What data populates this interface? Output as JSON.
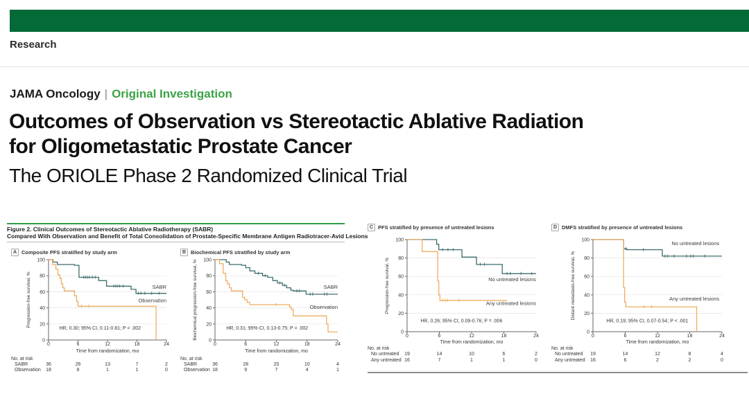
{
  "colors": {
    "brand_green": "#046a38",
    "accent_green": "#3ca245",
    "rule_green": "#2f9e44",
    "teal": "#3e6c6c",
    "orange": "#efad5f"
  },
  "header": {
    "section": "Research",
    "journal": "JAMA Oncology",
    "divider": "|",
    "article_type": "Original Investigation",
    "title_line1": "Outcomes of Observation vs Stereotactic Ablative Radiation",
    "title_line2": "for Oligometastatic Prostate Cancer",
    "subtitle": "The ORIOLE Phase 2 Randomized Clinical Trial"
  },
  "figure": {
    "caption_line1": "Figure 2. Clinical Outcomes of Stereotactic Ablative Radiotherapy (SABR)",
    "caption_line2": "Compared With Observation and Benefit of Total Consolidation of Prostate-Specific Membrane Antigen Radiotracer-Avid Lesions"
  },
  "chart_data": [
    {
      "panel": "A",
      "title": "Composite PFS stratified by study arm",
      "type": "line",
      "ylabel": "Progression-free survival, %",
      "xlabel": "Time from randomization, mo",
      "xlim": [
        0,
        24
      ],
      "ylim": [
        0,
        100
      ],
      "xticks": [
        0,
        6,
        12,
        18,
        24
      ],
      "yticks": [
        0,
        20,
        40,
        60,
        80,
        100
      ],
      "grid": true,
      "annotation": "HR, 0.30; 95% CI, 0.11-0.81; P = .002",
      "annotation_xy": [
        2.2,
        13
      ],
      "series": [
        {
          "name": "SABR",
          "color": "teal",
          "label_xy": [
            24,
            64
          ],
          "steps": [
            [
              0,
              100
            ],
            [
              0.9,
              100
            ],
            [
              0.9,
              97
            ],
            [
              1.8,
              97
            ],
            [
              1.8,
              94
            ],
            [
              5.3,
              94
            ],
            [
              5.3,
              93
            ],
            [
              6.2,
              93
            ],
            [
              6.2,
              78
            ],
            [
              10.2,
              78
            ],
            [
              10.2,
              74
            ],
            [
              11.8,
              74
            ],
            [
              11.8,
              67
            ],
            [
              16.8,
              67
            ],
            [
              16.8,
              63
            ],
            [
              17.8,
              63
            ],
            [
              17.8,
              58
            ],
            [
              24,
              58
            ]
          ],
          "censors": [
            [
              7.1,
              78
            ],
            [
              7.5,
              78
            ],
            [
              7.9,
              78
            ],
            [
              8.3,
              78
            ],
            [
              8.9,
              78
            ],
            [
              9.5,
              78
            ],
            [
              13.3,
              67
            ],
            [
              13.7,
              67
            ],
            [
              14.1,
              67
            ],
            [
              14.5,
              67
            ],
            [
              15.2,
              67
            ],
            [
              18.3,
              58
            ],
            [
              18.8,
              58
            ],
            [
              19.6,
              58
            ],
            [
              21,
              58
            ],
            [
              22.5,
              58
            ]
          ]
        },
        {
          "name": "Observation",
          "color": "orange",
          "label_xy": [
            24,
            47
          ],
          "steps": [
            [
              0,
              100
            ],
            [
              0.8,
              100
            ],
            [
              0.8,
              94
            ],
            [
              1.5,
              94
            ],
            [
              1.5,
              88
            ],
            [
              1.9,
              88
            ],
            [
              1.9,
              81
            ],
            [
              2.3,
              81
            ],
            [
              2.3,
              77
            ],
            [
              2.6,
              77
            ],
            [
              2.6,
              70
            ],
            [
              2.9,
              70
            ],
            [
              2.9,
              65
            ],
            [
              3.2,
              65
            ],
            [
              3.2,
              61
            ],
            [
              5.3,
              61
            ],
            [
              5.3,
              55
            ],
            [
              5.7,
              55
            ],
            [
              5.7,
              48
            ],
            [
              6,
              48
            ],
            [
              6,
              42
            ],
            [
              21.9,
              42
            ],
            [
              21.9,
              0
            ]
          ],
          "censors": [
            [
              6.7,
              42
            ],
            [
              8.2,
              42
            ]
          ]
        }
      ],
      "risk_table": {
        "heading": "No. at risk",
        "rows": [
          {
            "label": "SABR",
            "values": [
              36,
              26,
              13,
              7,
              2
            ]
          },
          {
            "label": "Observation",
            "values": [
              18,
              8,
              1,
              1,
              0
            ]
          }
        ]
      }
    },
    {
      "panel": "B",
      "title": "Biochemical PFS stratified by study arm",
      "type": "line",
      "ylabel": "Biochemical progression-free survival, %",
      "xlabel": "Time from randomization, mo",
      "xlim": [
        0,
        24
      ],
      "ylim": [
        0,
        100
      ],
      "xticks": [
        0,
        6,
        12,
        18,
        24
      ],
      "yticks": [
        0,
        20,
        40,
        60,
        80,
        100
      ],
      "grid": true,
      "annotation": "HR, 0.31; 95% CI, 0.13-0.75; P = .002",
      "annotation_xy": [
        2.2,
        13
      ],
      "series": [
        {
          "name": "SABR",
          "color": "teal",
          "label_xy": [
            24,
            64
          ],
          "steps": [
            [
              0,
              100
            ],
            [
              2.2,
              100
            ],
            [
              2.2,
              97
            ],
            [
              2.8,
              97
            ],
            [
              2.8,
              94
            ],
            [
              5.2,
              94
            ],
            [
              5.2,
              93
            ],
            [
              6,
              93
            ],
            [
              6,
              90
            ],
            [
              6.8,
              90
            ],
            [
              6.8,
              86
            ],
            [
              7.8,
              86
            ],
            [
              7.8,
              83
            ],
            [
              9.3,
              83
            ],
            [
              9.3,
              80
            ],
            [
              10.3,
              80
            ],
            [
              10.3,
              78
            ],
            [
              11.3,
              78
            ],
            [
              11.3,
              74
            ],
            [
              12.2,
              74
            ],
            [
              12.2,
              71
            ],
            [
              13.2,
              71
            ],
            [
              13.2,
              68
            ],
            [
              14,
              68
            ],
            [
              14,
              65
            ],
            [
              14.8,
              65
            ],
            [
              14.8,
              62
            ],
            [
              15.3,
              62
            ],
            [
              15.3,
              61
            ],
            [
              17.8,
              61
            ],
            [
              17.8,
              57
            ],
            [
              24,
              57
            ]
          ],
          "censors": [
            [
              8.5,
              83
            ],
            [
              9.8,
              80
            ],
            [
              12.7,
              71
            ],
            [
              13.6,
              68
            ],
            [
              16,
              61
            ],
            [
              16.5,
              61
            ],
            [
              18.6,
              57
            ],
            [
              19.1,
              57
            ],
            [
              21.4,
              57
            ],
            [
              21.9,
              57
            ]
          ]
        },
        {
          "name": "Observation",
          "color": "orange",
          "label_xy": [
            24,
            39
          ],
          "steps": [
            [
              0,
              100
            ],
            [
              0.9,
              100
            ],
            [
              0.9,
              95
            ],
            [
              1.6,
              95
            ],
            [
              1.6,
              83
            ],
            [
              2.1,
              83
            ],
            [
              2.1,
              74
            ],
            [
              2.4,
              74
            ],
            [
              2.4,
              70
            ],
            [
              2.8,
              70
            ],
            [
              2.8,
              65
            ],
            [
              3.2,
              65
            ],
            [
              3.2,
              61
            ],
            [
              5.4,
              61
            ],
            [
              5.4,
              53
            ],
            [
              5.8,
              53
            ],
            [
              5.8,
              50
            ],
            [
              6.3,
              50
            ],
            [
              6.3,
              47
            ],
            [
              6.8,
              47
            ],
            [
              6.8,
              44
            ],
            [
              14.6,
              44
            ],
            [
              14.6,
              41
            ],
            [
              14.9,
              41
            ],
            [
              14.9,
              38
            ],
            [
              15.3,
              38
            ],
            [
              15.3,
              30
            ],
            [
              21.8,
              30
            ],
            [
              21.8,
              20
            ],
            [
              22.1,
              20
            ],
            [
              22.1,
              10
            ],
            [
              24,
              10
            ]
          ],
          "censors": [
            [
              11.9,
              44
            ]
          ]
        }
      ],
      "risk_table": {
        "heading": "No. at risk",
        "rows": [
          {
            "label": "SABR",
            "values": [
              36,
              28,
              20,
              10,
              4
            ]
          },
          {
            "label": "Observation",
            "values": [
              18,
              9,
              7,
              4,
              1
            ]
          }
        ]
      }
    },
    {
      "panel": "C",
      "title": "PFS stratified by presence of untreated lesions",
      "type": "line",
      "ylabel": "Progression-free survival, %",
      "xlabel": "Time from randomization, mo",
      "xlim": [
        0,
        24
      ],
      "ylim": [
        0,
        100
      ],
      "xticks": [
        0,
        6,
        12,
        18,
        24
      ],
      "yticks": [
        0,
        20,
        40,
        60,
        80,
        100
      ],
      "grid": true,
      "annotation": "HR, 0.26; 95% CI, 0.09-0.76; P = .006",
      "annotation_xy": [
        2.5,
        10
      ],
      "series": [
        {
          "name": "No untreated lesions",
          "color": "teal",
          "label_xy": [
            24,
            55
          ],
          "steps": [
            [
              0,
              100
            ],
            [
              5.5,
              100
            ],
            [
              5.5,
              95
            ],
            [
              5.9,
              95
            ],
            [
              5.9,
              89
            ],
            [
              10.2,
              89
            ],
            [
              10.2,
              81
            ],
            [
              12.9,
              81
            ],
            [
              12.9,
              73
            ],
            [
              17.7,
              73
            ],
            [
              17.7,
              63
            ],
            [
              24,
              63
            ]
          ],
          "censors": [
            [
              6.6,
              89
            ],
            [
              7.6,
              89
            ],
            [
              8.6,
              89
            ],
            [
              13.6,
              73
            ],
            [
              14.4,
              73
            ],
            [
              18.6,
              63
            ],
            [
              19.2,
              63
            ],
            [
              21.2,
              63
            ],
            [
              23.2,
              63
            ]
          ]
        },
        {
          "name": "Any untreated lesions",
          "color": "orange",
          "label_xy": [
            24,
            29
          ],
          "steps": [
            [
              0,
              100
            ],
            [
              2.8,
              100
            ],
            [
              2.8,
              87
            ],
            [
              5.7,
              87
            ],
            [
              5.7,
              55
            ],
            [
              5.9,
              55
            ],
            [
              5.9,
              40
            ],
            [
              6.1,
              40
            ],
            [
              6.1,
              34
            ],
            [
              18.6,
              34
            ]
          ],
          "censors": [
            [
              6.6,
              34
            ],
            [
              7.1,
              34
            ],
            [
              7.5,
              34
            ],
            [
              9.6,
              34
            ]
          ]
        }
      ],
      "risk_table": {
        "heading": "No. at risk",
        "rows": [
          {
            "label": "No untreated",
            "values": [
              19,
              14,
              10,
              6,
              2
            ]
          },
          {
            "label": "Any untreated",
            "values": [
              16,
              7,
              1,
              1,
              0
            ]
          }
        ]
      }
    },
    {
      "panel": "D",
      "title": "DMFS stratified by presence of untreated lesions",
      "type": "line",
      "ylabel": "Distant metastasis-free survival, %",
      "xlabel": "Time from randomization, mo",
      "xlim": [
        0,
        24
      ],
      "ylim": [
        0,
        100
      ],
      "xticks": [
        0,
        6,
        12,
        18,
        24
      ],
      "yticks": [
        0,
        20,
        40,
        60,
        80,
        100
      ],
      "grid": true,
      "annotation": "HR, 0.19; 95% CI, 0.07-0.54; P < .001",
      "annotation_xy": [
        2.5,
        10
      ],
      "series": [
        {
          "name": "No untreated lesions",
          "color": "teal",
          "label_xy": [
            23.5,
            94
          ],
          "steps": [
            [
              0,
              100
            ],
            [
              5.7,
              100
            ],
            [
              5.7,
              90
            ],
            [
              6.3,
              90
            ],
            [
              6.3,
              89
            ],
            [
              12.9,
              89
            ],
            [
              12.9,
              82
            ],
            [
              24,
              82
            ]
          ],
          "censors": [
            [
              6.1,
              90
            ],
            [
              9.4,
              89
            ],
            [
              13.4,
              82
            ],
            [
              13.9,
              82
            ],
            [
              15.1,
              82
            ],
            [
              17.4,
              82
            ],
            [
              18.2,
              82
            ],
            [
              18.7,
              82
            ],
            [
              20.8,
              82
            ]
          ]
        },
        {
          "name": "Any untreated lesions",
          "color": "orange",
          "label_xy": [
            23.5,
            34
          ],
          "steps": [
            [
              0,
              100
            ],
            [
              5.7,
              100
            ],
            [
              5.7,
              48
            ],
            [
              5.9,
              48
            ],
            [
              5.9,
              32
            ],
            [
              6.1,
              32
            ],
            [
              6.1,
              27
            ],
            [
              19.3,
              27
            ],
            [
              19.3,
              0
            ]
          ],
          "censors": [
            [
              9.5,
              27
            ],
            [
              10.9,
              27
            ]
          ]
        }
      ],
      "risk_table": {
        "heading": "No. at risk",
        "rows": [
          {
            "label": "No untreated",
            "values": [
              19,
              14,
              12,
              8,
              4
            ]
          },
          {
            "label": "Any untreated",
            "values": [
              16,
              6,
              2,
              2,
              0
            ]
          }
        ]
      }
    }
  ]
}
